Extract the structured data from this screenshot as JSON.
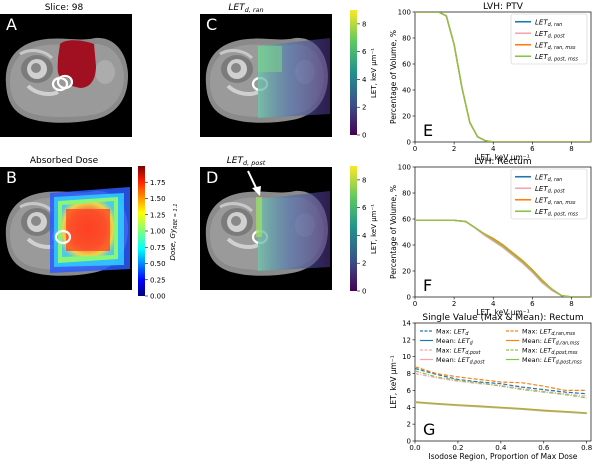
{
  "panels": {
    "A": {
      "letter": "A",
      "title": "Slice: 98"
    },
    "B": {
      "letter": "B",
      "title": "Absorbed Dose",
      "cbar_label": "Dose, Gy",
      "cbar_label_sub": "RBE = 1.1",
      "cbar_ticks": [
        "0.00",
        "0.25",
        "0.50",
        "0.75",
        "1.00",
        "1.25",
        "1.50",
        "1.75"
      ]
    },
    "C": {
      "letter": "C",
      "title": "LET",
      "title_sub": "d, ran",
      "cbar_label": "LET, keV μm⁻¹",
      "cbar_ticks": [
        "0",
        "2",
        "4",
        "6",
        "8"
      ]
    },
    "D": {
      "letter": "D",
      "title": "LET",
      "title_sub": "d, post",
      "cbar_label": "LET, keV μm⁻¹",
      "cbar_ticks": [
        "0",
        "2",
        "4",
        "6",
        "8"
      ]
    }
  },
  "colors": {
    "LETd_ran": "#1f77b4",
    "LETd_post": "#f4a6b0",
    "LETd_ran_mss": "#ff7f0e",
    "LETd_post_mss": "#8bc34a",
    "tumor": "#a01020"
  },
  "chart_data": [
    {
      "letter": "E",
      "type": "line",
      "title": "LVH: PTV",
      "xlabel": "LET, keV μm⁻¹",
      "ylabel": "Percentage of Volume, %",
      "xlim": [
        0,
        9
      ],
      "ylim": [
        0,
        100
      ],
      "xticks": [
        "0",
        "2",
        "4",
        "6",
        "8"
      ],
      "yticks": [
        "0",
        "20",
        "40",
        "60",
        "80",
        "100"
      ],
      "legend": [
        "LET_d,ran",
        "LET_d,post",
        "LET_d,ran,mss",
        "LET_d,post,mss"
      ],
      "legend_display": [
        {
          "main": "LET",
          "sub": "d, ran"
        },
        {
          "main": "LET",
          "sub": "d, post"
        },
        {
          "main": "LET",
          "sub": "d, ran, mss"
        },
        {
          "main": "LET",
          "sub": "d, post, mss"
        }
      ],
      "series": [
        {
          "name": "LET_d,ran",
          "x": [
            0,
            1.2,
            1.6,
            2.0,
            2.4,
            2.8,
            3.2,
            3.6,
            4.0,
            9
          ],
          "values": [
            100,
            100,
            97,
            75,
            42,
            15,
            4,
            1,
            0,
            0
          ]
        },
        {
          "name": "LET_d,post",
          "x": [
            0,
            1.2,
            1.6,
            2.0,
            2.4,
            2.8,
            3.2,
            3.6,
            4.0,
            9
          ],
          "values": [
            100,
            100,
            97,
            75,
            42,
            15,
            4,
            1,
            0,
            0
          ]
        },
        {
          "name": "LET_d,ran,mss",
          "x": [
            0,
            1.2,
            1.6,
            2.0,
            2.4,
            2.8,
            3.2,
            3.6,
            4.0,
            9
          ],
          "values": [
            100,
            100,
            97,
            75,
            42,
            15,
            4,
            1,
            0,
            0
          ]
        },
        {
          "name": "LET_d,post,mss",
          "x": [
            0,
            1.2,
            1.6,
            2.0,
            2.4,
            2.8,
            3.2,
            3.6,
            4.0,
            9
          ],
          "values": [
            100,
            100,
            97,
            75,
            42,
            15,
            4,
            1,
            0,
            0
          ]
        }
      ]
    },
    {
      "letter": "F",
      "type": "line",
      "title": "LVH: Rectum",
      "xlabel": "LET, keV μm⁻¹",
      "ylabel": "Percentage of Volume, %",
      "xlim": [
        0,
        9
      ],
      "ylim": [
        0,
        100
      ],
      "xticks": [
        "0",
        "2",
        "4",
        "6",
        "8"
      ],
      "yticks": [
        "0",
        "20",
        "40",
        "60",
        "80",
        "100"
      ],
      "legend": [
        "LET_d,ran",
        "LET_d,post",
        "LET_d,ran,mss",
        "LET_d,post,mss"
      ],
      "legend_display": [
        {
          "main": "LET",
          "sub": "d, ran"
        },
        {
          "main": "LET",
          "sub": "d, post"
        },
        {
          "main": "LET",
          "sub": "d, ran, mss"
        },
        {
          "main": "LET",
          "sub": "d, post, mss"
        }
      ],
      "series": [
        {
          "name": "LET_d,ran",
          "x": [
            0,
            2.0,
            2.6,
            3.0,
            3.5,
            4.0,
            4.5,
            5.0,
            5.5,
            6.0,
            6.5,
            7.0,
            7.5,
            8.0,
            9
          ],
          "values": [
            59,
            59,
            58,
            54,
            49,
            44,
            39,
            33,
            27,
            20,
            12,
            6,
            1,
            0,
            0
          ]
        },
        {
          "name": "LET_d,post",
          "x": [
            0,
            2.0,
            2.6,
            3.0,
            3.5,
            4.0,
            4.5,
            5.0,
            5.5,
            6.0,
            6.5,
            7.0,
            7.5,
            8.0,
            9
          ],
          "values": [
            59,
            59,
            58,
            54,
            48,
            43,
            38,
            32,
            26,
            19,
            11,
            5,
            1,
            0,
            0
          ]
        },
        {
          "name": "LET_d,ran,mss",
          "x": [
            0,
            2.0,
            2.6,
            3.0,
            3.5,
            4.0,
            4.5,
            5.0,
            5.5,
            6.0,
            6.5,
            7.0,
            7.5,
            8.0,
            9
          ],
          "values": [
            59,
            59,
            58,
            54,
            49,
            45,
            40,
            34,
            28,
            21,
            13,
            6,
            1,
            0,
            0
          ]
        },
        {
          "name": "LET_d,post,mss",
          "x": [
            0,
            2.0,
            2.6,
            3.0,
            3.5,
            4.0,
            4.5,
            5.0,
            5.5,
            6.0,
            6.5,
            7.0,
            7.5,
            8.0,
            9
          ],
          "values": [
            59,
            59,
            58,
            54,
            49,
            44,
            39,
            33,
            27,
            20,
            12,
            6,
            1,
            0,
            0
          ]
        }
      ]
    },
    {
      "letter": "G",
      "type": "line",
      "title": "Single Value (Max & Mean): Rectum",
      "xlabel": "Isodose Region, Proportion of Max Dose",
      "ylabel": "LET, keV μm⁻¹",
      "xlim": [
        0,
        0.82
      ],
      "ylim": [
        0,
        14
      ],
      "xticks": [
        "0.0",
        "0.2",
        "0.4",
        "0.6",
        "0.8"
      ],
      "yticks": [
        "0",
        "2",
        "4",
        "6",
        "8",
        "10",
        "12",
        "14"
      ],
      "legend": [
        "Max: LET_d",
        "Mean: LET_d",
        "Max: LET_d,post",
        "Mean: LET_d,post",
        "Max: LET_d,ran,mss",
        "Mean: LET_d,ran,mss",
        "Max: LET_d,post,mss",
        "Mean: LET_d,post,mss"
      ],
      "legend_display": [
        {
          "pre": "Max: ",
          "main": "LET",
          "sub": "d"
        },
        {
          "pre": "Mean: ",
          "main": "LET",
          "sub": "d"
        },
        {
          "pre": "Max: ",
          "main": "LET",
          "sub": "d,post"
        },
        {
          "pre": "Mean: ",
          "main": "LET",
          "sub": "d,post"
        },
        {
          "pre": "Max: ",
          "main": "LET",
          "sub": "d,ran,mss"
        },
        {
          "pre": "Mean: ",
          "main": "LET",
          "sub": "d,ran,mss"
        },
        {
          "pre": "Max: ",
          "main": "LET",
          "sub": "d,post,mss"
        },
        {
          "pre": "Mean: ",
          "main": "LET",
          "sub": "d,post,mss"
        }
      ],
      "series": [
        {
          "name": "Max: LET_d",
          "x": [
            0,
            0.1,
            0.2,
            0.3,
            0.4,
            0.5,
            0.6,
            0.7,
            0.8
          ],
          "values": [
            8.6,
            7.9,
            7.3,
            7.0,
            6.8,
            6.4,
            6.1,
            5.8,
            5.6
          ]
        },
        {
          "name": "Mean: LET_d",
          "x": [
            0,
            0.1,
            0.2,
            0.3,
            0.4,
            0.5,
            0.6,
            0.7,
            0.8
          ],
          "values": [
            4.6,
            4.4,
            4.25,
            4.1,
            3.95,
            3.8,
            3.6,
            3.45,
            3.3
          ]
        },
        {
          "name": "Max: LET_d,post",
          "x": [
            0,
            0.1,
            0.2,
            0.3,
            0.4,
            0.5,
            0.6,
            0.7,
            0.8
          ],
          "values": [
            8.0,
            7.5,
            7.1,
            6.8,
            6.6,
            6.2,
            5.9,
            5.6,
            5.3
          ]
        },
        {
          "name": "Mean: LET_d,post",
          "x": [
            0,
            0.1,
            0.2,
            0.3,
            0.4,
            0.5,
            0.6,
            0.7,
            0.8
          ],
          "values": [
            4.55,
            4.35,
            4.2,
            4.05,
            3.9,
            3.75,
            3.55,
            3.4,
            3.25
          ]
        },
        {
          "name": "Max: LET_d,ran,mss",
          "x": [
            0,
            0.1,
            0.2,
            0.3,
            0.4,
            0.5,
            0.6,
            0.7,
            0.8
          ],
          "values": [
            8.8,
            8.0,
            7.6,
            7.3,
            7.0,
            6.9,
            6.5,
            6.0,
            6.0
          ]
        },
        {
          "name": "Mean: LET_d,ran,mss",
          "x": [
            0,
            0.1,
            0.2,
            0.3,
            0.4,
            0.5,
            0.6,
            0.7,
            0.8
          ],
          "values": [
            4.65,
            4.45,
            4.3,
            4.15,
            4.0,
            3.85,
            3.65,
            3.5,
            3.35
          ]
        },
        {
          "name": "Max: LET_d,post,mss",
          "x": [
            0,
            0.1,
            0.2,
            0.3,
            0.4,
            0.5,
            0.6,
            0.7,
            0.8
          ],
          "values": [
            8.3,
            7.6,
            7.2,
            6.9,
            6.5,
            6.1,
            5.8,
            5.5,
            5.1
          ]
        },
        {
          "name": "Mean: LET_d,post,mss",
          "x": [
            0,
            0.1,
            0.2,
            0.3,
            0.4,
            0.5,
            0.6,
            0.7,
            0.8
          ],
          "values": [
            4.6,
            4.4,
            4.25,
            4.1,
            3.95,
            3.8,
            3.6,
            3.45,
            3.3
          ]
        }
      ]
    }
  ]
}
